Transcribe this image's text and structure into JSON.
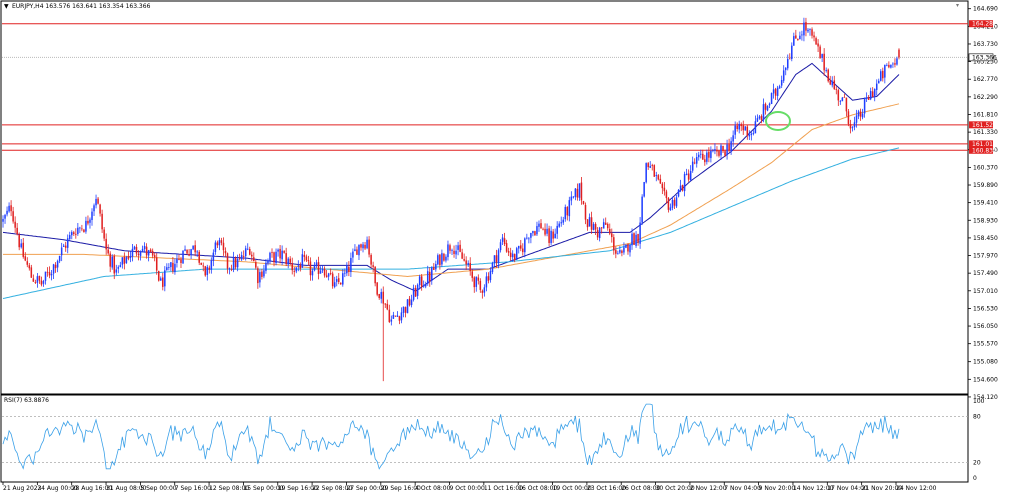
{
  "header": {
    "symbol_line": "EURJPY,H4 163.576 163.641 163.354 163.366",
    "rsi_line": "RSI(7) 63.8876"
  },
  "colors": {
    "bull": "#1f3fff",
    "bear": "#e02020",
    "ma_fast": "#1a1aa6",
    "ma_mid": "#f0a050",
    "ma_slow": "#33b0e0",
    "level": "#e02020",
    "rsi": "#3aa0e8",
    "ellipse": "#66dd66",
    "price_box": "#e02020"
  },
  "chart_data": [
    {
      "type": "candlestick",
      "title": "EURJPY,H4",
      "ylim": [
        154.2,
        164.9
      ],
      "y_ticks": [
        "164.690",
        "164.210",
        "163.730",
        "163.250",
        "162.770",
        "162.290",
        "161.810",
        "161.330",
        "160.850",
        "160.370",
        "159.890",
        "159.410",
        "158.930",
        "158.450",
        "157.970",
        "157.490",
        "157.010",
        "156.530",
        "156.050",
        "155.570",
        "155.080",
        "154.600",
        "154.120"
      ],
      "x_ticks": [
        "21 Aug 2023",
        "24 Aug 00:00",
        "28 Aug 16:00",
        "31 Aug 08:00",
        "5 Sep 00:00",
        "7 Sep 16:00",
        "12 Sep 08:00",
        "15 Sep 00:00",
        "19 Sep 16:00",
        "22 Sep 08:00",
        "27 Sep 00:00",
        "29 Sep 16:00",
        "4 Oct 08:00",
        "9 Oct 00:00",
        "11 Oct 16:00",
        "16 Oct 08:00",
        "19 Oct 00:00",
        "23 Oct 16:00",
        "26 Oct 08:00",
        "30 Oct 20:00",
        "2 Nov 12:00",
        "7 Nov 04:00",
        "9 Nov 20:00",
        "14 Nov 12:00",
        "17 Nov 04:00",
        "21 Nov 20:00",
        "24 Nov 12:00"
      ],
      "price_anchors": [
        [
          0,
          158.9
        ],
        [
          4,
          159.3
        ],
        [
          9,
          158.1
        ],
        [
          14,
          157.4
        ],
        [
          19,
          157.2
        ],
        [
          24,
          157.6
        ],
        [
          30,
          158.2
        ],
        [
          36,
          158.7
        ],
        [
          41,
          158.8
        ],
        [
          46,
          159.6
        ],
        [
          51,
          158.1
        ],
        [
          56,
          157.5
        ],
        [
          62,
          158.0
        ],
        [
          68,
          158.2
        ],
        [
          74,
          157.9
        ],
        [
          78,
          157.2
        ],
        [
          84,
          157.7
        ],
        [
          90,
          158.1
        ],
        [
          96,
          158.2
        ],
        [
          100,
          157.3
        ],
        [
          106,
          158.4
        ],
        [
          111,
          157.7
        ],
        [
          117,
          157.8
        ],
        [
          122,
          158.2
        ],
        [
          126,
          157.4
        ],
        [
          132,
          157.9
        ],
        [
          138,
          158.0
        ],
        [
          144,
          157.6
        ],
        [
          148,
          157.8
        ],
        [
          153,
          157.5
        ],
        [
          158,
          157.7
        ],
        [
          164,
          157.1
        ],
        [
          170,
          157.5
        ],
        [
          175,
          158.2
        ],
        [
          180,
          158.4
        ],
        [
          184,
          157.2
        ],
        [
          188,
          156.8
        ],
        [
          192,
          156.2
        ],
        [
          196,
          156.4
        ],
        [
          200,
          156.6
        ],
        [
          206,
          157.2
        ],
        [
          211,
          157.4
        ],
        [
          216,
          157.9
        ],
        [
          222,
          158.3
        ],
        [
          228,
          157.8
        ],
        [
          232,
          157.4
        ],
        [
          236,
          157.0
        ],
        [
          242,
          157.7
        ],
        [
          247,
          158.4
        ],
        [
          252,
          157.9
        ],
        [
          256,
          158.1
        ],
        [
          260,
          158.6
        ],
        [
          266,
          158.8
        ],
        [
          270,
          158.4
        ],
        [
          276,
          158.9
        ],
        [
          280,
          159.3
        ],
        [
          285,
          159.8
        ],
        [
          289,
          158.9
        ],
        [
          294,
          158.6
        ],
        [
          298,
          158.8
        ],
        [
          303,
          158.1
        ],
        [
          306,
          157.9
        ],
        [
          310,
          158.4
        ],
        [
          314,
          158.5
        ],
        [
          318,
          160.5
        ],
        [
          322,
          160.2
        ],
        [
          326,
          159.6
        ],
        [
          330,
          159.3
        ],
        [
          336,
          159.9
        ],
        [
          342,
          160.5
        ],
        [
          348,
          160.7
        ],
        [
          353,
          160.7
        ],
        [
          358,
          160.9
        ],
        [
          364,
          161.5
        ],
        [
          370,
          161.3
        ],
        [
          376,
          161.9
        ],
        [
          382,
          162.4
        ],
        [
          388,
          163.4
        ],
        [
          392,
          163.9
        ],
        [
          396,
          164.2
        ],
        [
          400,
          163.9
        ],
        [
          404,
          163.4
        ],
        [
          408,
          162.9
        ],
        [
          412,
          162.4
        ],
        [
          416,
          162.1
        ],
        [
          420,
          161.4
        ],
        [
          424,
          161.8
        ],
        [
          428,
          162.3
        ],
        [
          432,
          162.6
        ],
        [
          436,
          163.0
        ],
        [
          440,
          163.2
        ],
        [
          443,
          163.37
        ]
      ],
      "candles": 444,
      "current_price": "163.366",
      "levels": [
        {
          "label": "164.282",
          "value": 164.282
        },
        {
          "label": "161.529",
          "value": 161.529
        },
        {
          "label": "161.010",
          "value": 161.01
        },
        {
          "label": "160.836",
          "value": 160.836
        }
      ],
      "moving_averages": [
        {
          "role": "fast",
          "anchors": [
            [
              0,
              158.6
            ],
            [
              30,
              158.4
            ],
            [
              60,
              158.1
            ],
            [
              90,
              158.0
            ],
            [
              120,
              157.9
            ],
            [
              150,
              157.7
            ],
            [
              180,
              157.7
            ],
            [
              192,
              157.3
            ],
            [
              204,
              157.0
            ],
            [
              220,
              157.6
            ],
            [
              240,
              157.6
            ],
            [
              260,
              158.0
            ],
            [
              290,
              158.6
            ],
            [
              310,
              158.6
            ],
            [
              320,
              159.0
            ],
            [
              340,
              160.0
            ],
            [
              360,
              160.8
            ],
            [
              380,
              161.9
            ],
            [
              392,
              162.9
            ],
            [
              400,
              163.2
            ],
            [
              412,
              162.6
            ],
            [
              420,
              162.2
            ],
            [
              432,
              162.3
            ],
            [
              443,
              162.9
            ]
          ]
        },
        {
          "role": "mid",
          "anchors": [
            [
              0,
              158.0
            ],
            [
              40,
              158.0
            ],
            [
              80,
              157.9
            ],
            [
              120,
              157.8
            ],
            [
              160,
              157.6
            ],
            [
              200,
              157.4
            ],
            [
              240,
              157.6
            ],
            [
              280,
              158.0
            ],
            [
              310,
              158.3
            ],
            [
              330,
              158.8
            ],
            [
              360,
              159.8
            ],
            [
              380,
              160.5
            ],
            [
              400,
              161.4
            ],
            [
              420,
              161.8
            ],
            [
              443,
              162.1
            ]
          ]
        },
        {
          "role": "slow",
          "anchors": [
            [
              0,
              156.8
            ],
            [
              50,
              157.4
            ],
            [
              100,
              157.6
            ],
            [
              150,
              157.6
            ],
            [
              200,
              157.6
            ],
            [
              250,
              157.8
            ],
            [
              300,
              158.1
            ],
            [
              330,
              158.6
            ],
            [
              360,
              159.3
            ],
            [
              390,
              160.0
            ],
            [
              420,
              160.6
            ],
            [
              443,
              160.9
            ]
          ]
        }
      ]
    },
    {
      "type": "line",
      "title": "RSI(7) 63.8876",
      "ylim": [
        0,
        100
      ],
      "y_ticks": [
        "100",
        "80",
        "20",
        "0"
      ],
      "levels": [
        80,
        20
      ],
      "value": 63.8876
    }
  ]
}
